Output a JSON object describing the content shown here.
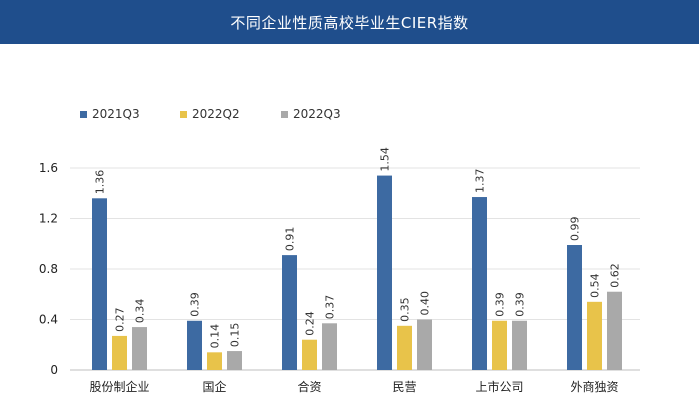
{
  "title": "不同企业性质高校毕业生CIER指数",
  "chart_data": {
    "type": "bar",
    "title": "不同企业性质高校毕业生CIER指数",
    "categories": [
      "股份制企业",
      "国企",
      "合资",
      "民营",
      "上市公司",
      "外商独资"
    ],
    "series": [
      {
        "name": "2021Q3",
        "color": "#3d6aa2",
        "values": [
          1.36,
          0.39,
          0.91,
          1.54,
          1.37,
          0.99
        ],
        "labels": [
          "1.36",
          "0.39",
          "0.91",
          "1.54",
          "1.37",
          "0.99"
        ]
      },
      {
        "name": "2022Q2",
        "color": "#e8c34a",
        "values": [
          0.27,
          0.14,
          0.24,
          0.35,
          0.39,
          0.54
        ],
        "labels": [
          "0.27",
          "0.14",
          "0.24",
          "0.35",
          "0.39",
          "0.54"
        ]
      },
      {
        "name": "2022Q3",
        "color": "#a9a9a9",
        "values": [
          0.34,
          0.15,
          0.37,
          0.4,
          0.39,
          0.62
        ],
        "labels": [
          "0.34",
          "0.15",
          "0.37",
          "0.40",
          "0.39",
          "0.62"
        ]
      }
    ],
    "yticks": [
      "0",
      "0.4",
      "0.8",
      "1.2",
      "1.6"
    ],
    "ylim": [
      0,
      1.6
    ],
    "grid": true,
    "legend": "top-left"
  }
}
